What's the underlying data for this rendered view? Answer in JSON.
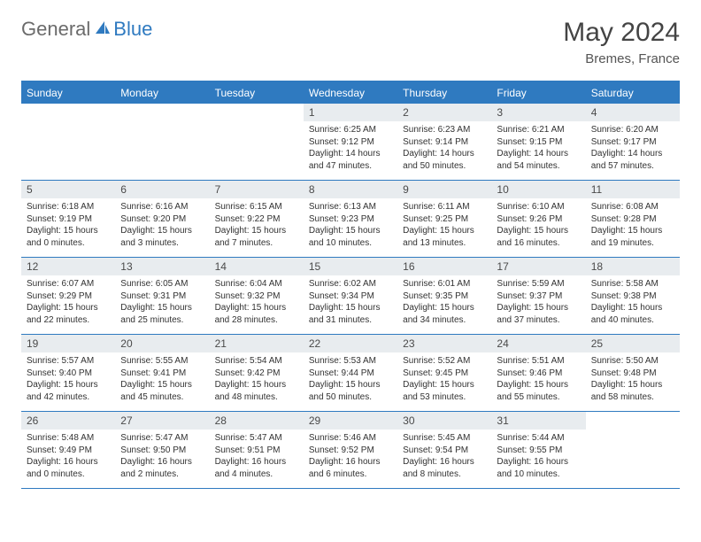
{
  "brand": {
    "part1": "General",
    "part2": "Blue"
  },
  "title": "May 2024",
  "location": "Bremes, France",
  "colors": {
    "accent": "#2f7ac0",
    "daynum_bg": "#e8ecef",
    "text": "#333333",
    "brand_gray": "#6b6b6b"
  },
  "weekdays": [
    "Sunday",
    "Monday",
    "Tuesday",
    "Wednesday",
    "Thursday",
    "Friday",
    "Saturday"
  ],
  "weeks": [
    [
      {
        "n": "",
        "sr": "",
        "ss": "",
        "dl": ""
      },
      {
        "n": "",
        "sr": "",
        "ss": "",
        "dl": ""
      },
      {
        "n": "",
        "sr": "",
        "ss": "",
        "dl": ""
      },
      {
        "n": "1",
        "sr": "Sunrise: 6:25 AM",
        "ss": "Sunset: 9:12 PM",
        "dl": "Daylight: 14 hours and 47 minutes."
      },
      {
        "n": "2",
        "sr": "Sunrise: 6:23 AM",
        "ss": "Sunset: 9:14 PM",
        "dl": "Daylight: 14 hours and 50 minutes."
      },
      {
        "n": "3",
        "sr": "Sunrise: 6:21 AM",
        "ss": "Sunset: 9:15 PM",
        "dl": "Daylight: 14 hours and 54 minutes."
      },
      {
        "n": "4",
        "sr": "Sunrise: 6:20 AM",
        "ss": "Sunset: 9:17 PM",
        "dl": "Daylight: 14 hours and 57 minutes."
      }
    ],
    [
      {
        "n": "5",
        "sr": "Sunrise: 6:18 AM",
        "ss": "Sunset: 9:19 PM",
        "dl": "Daylight: 15 hours and 0 minutes."
      },
      {
        "n": "6",
        "sr": "Sunrise: 6:16 AM",
        "ss": "Sunset: 9:20 PM",
        "dl": "Daylight: 15 hours and 3 minutes."
      },
      {
        "n": "7",
        "sr": "Sunrise: 6:15 AM",
        "ss": "Sunset: 9:22 PM",
        "dl": "Daylight: 15 hours and 7 minutes."
      },
      {
        "n": "8",
        "sr": "Sunrise: 6:13 AM",
        "ss": "Sunset: 9:23 PM",
        "dl": "Daylight: 15 hours and 10 minutes."
      },
      {
        "n": "9",
        "sr": "Sunrise: 6:11 AM",
        "ss": "Sunset: 9:25 PM",
        "dl": "Daylight: 15 hours and 13 minutes."
      },
      {
        "n": "10",
        "sr": "Sunrise: 6:10 AM",
        "ss": "Sunset: 9:26 PM",
        "dl": "Daylight: 15 hours and 16 minutes."
      },
      {
        "n": "11",
        "sr": "Sunrise: 6:08 AM",
        "ss": "Sunset: 9:28 PM",
        "dl": "Daylight: 15 hours and 19 minutes."
      }
    ],
    [
      {
        "n": "12",
        "sr": "Sunrise: 6:07 AM",
        "ss": "Sunset: 9:29 PM",
        "dl": "Daylight: 15 hours and 22 minutes."
      },
      {
        "n": "13",
        "sr": "Sunrise: 6:05 AM",
        "ss": "Sunset: 9:31 PM",
        "dl": "Daylight: 15 hours and 25 minutes."
      },
      {
        "n": "14",
        "sr": "Sunrise: 6:04 AM",
        "ss": "Sunset: 9:32 PM",
        "dl": "Daylight: 15 hours and 28 minutes."
      },
      {
        "n": "15",
        "sr": "Sunrise: 6:02 AM",
        "ss": "Sunset: 9:34 PM",
        "dl": "Daylight: 15 hours and 31 minutes."
      },
      {
        "n": "16",
        "sr": "Sunrise: 6:01 AM",
        "ss": "Sunset: 9:35 PM",
        "dl": "Daylight: 15 hours and 34 minutes."
      },
      {
        "n": "17",
        "sr": "Sunrise: 5:59 AM",
        "ss": "Sunset: 9:37 PM",
        "dl": "Daylight: 15 hours and 37 minutes."
      },
      {
        "n": "18",
        "sr": "Sunrise: 5:58 AM",
        "ss": "Sunset: 9:38 PM",
        "dl": "Daylight: 15 hours and 40 minutes."
      }
    ],
    [
      {
        "n": "19",
        "sr": "Sunrise: 5:57 AM",
        "ss": "Sunset: 9:40 PM",
        "dl": "Daylight: 15 hours and 42 minutes."
      },
      {
        "n": "20",
        "sr": "Sunrise: 5:55 AM",
        "ss": "Sunset: 9:41 PM",
        "dl": "Daylight: 15 hours and 45 minutes."
      },
      {
        "n": "21",
        "sr": "Sunrise: 5:54 AM",
        "ss": "Sunset: 9:42 PM",
        "dl": "Daylight: 15 hours and 48 minutes."
      },
      {
        "n": "22",
        "sr": "Sunrise: 5:53 AM",
        "ss": "Sunset: 9:44 PM",
        "dl": "Daylight: 15 hours and 50 minutes."
      },
      {
        "n": "23",
        "sr": "Sunrise: 5:52 AM",
        "ss": "Sunset: 9:45 PM",
        "dl": "Daylight: 15 hours and 53 minutes."
      },
      {
        "n": "24",
        "sr": "Sunrise: 5:51 AM",
        "ss": "Sunset: 9:46 PM",
        "dl": "Daylight: 15 hours and 55 minutes."
      },
      {
        "n": "25",
        "sr": "Sunrise: 5:50 AM",
        "ss": "Sunset: 9:48 PM",
        "dl": "Daylight: 15 hours and 58 minutes."
      }
    ],
    [
      {
        "n": "26",
        "sr": "Sunrise: 5:48 AM",
        "ss": "Sunset: 9:49 PM",
        "dl": "Daylight: 16 hours and 0 minutes."
      },
      {
        "n": "27",
        "sr": "Sunrise: 5:47 AM",
        "ss": "Sunset: 9:50 PM",
        "dl": "Daylight: 16 hours and 2 minutes."
      },
      {
        "n": "28",
        "sr": "Sunrise: 5:47 AM",
        "ss": "Sunset: 9:51 PM",
        "dl": "Daylight: 16 hours and 4 minutes."
      },
      {
        "n": "29",
        "sr": "Sunrise: 5:46 AM",
        "ss": "Sunset: 9:52 PM",
        "dl": "Daylight: 16 hours and 6 minutes."
      },
      {
        "n": "30",
        "sr": "Sunrise: 5:45 AM",
        "ss": "Sunset: 9:54 PM",
        "dl": "Daylight: 16 hours and 8 minutes."
      },
      {
        "n": "31",
        "sr": "Sunrise: 5:44 AM",
        "ss": "Sunset: 9:55 PM",
        "dl": "Daylight: 16 hours and 10 minutes."
      },
      {
        "n": "",
        "sr": "",
        "ss": "",
        "dl": ""
      }
    ]
  ]
}
